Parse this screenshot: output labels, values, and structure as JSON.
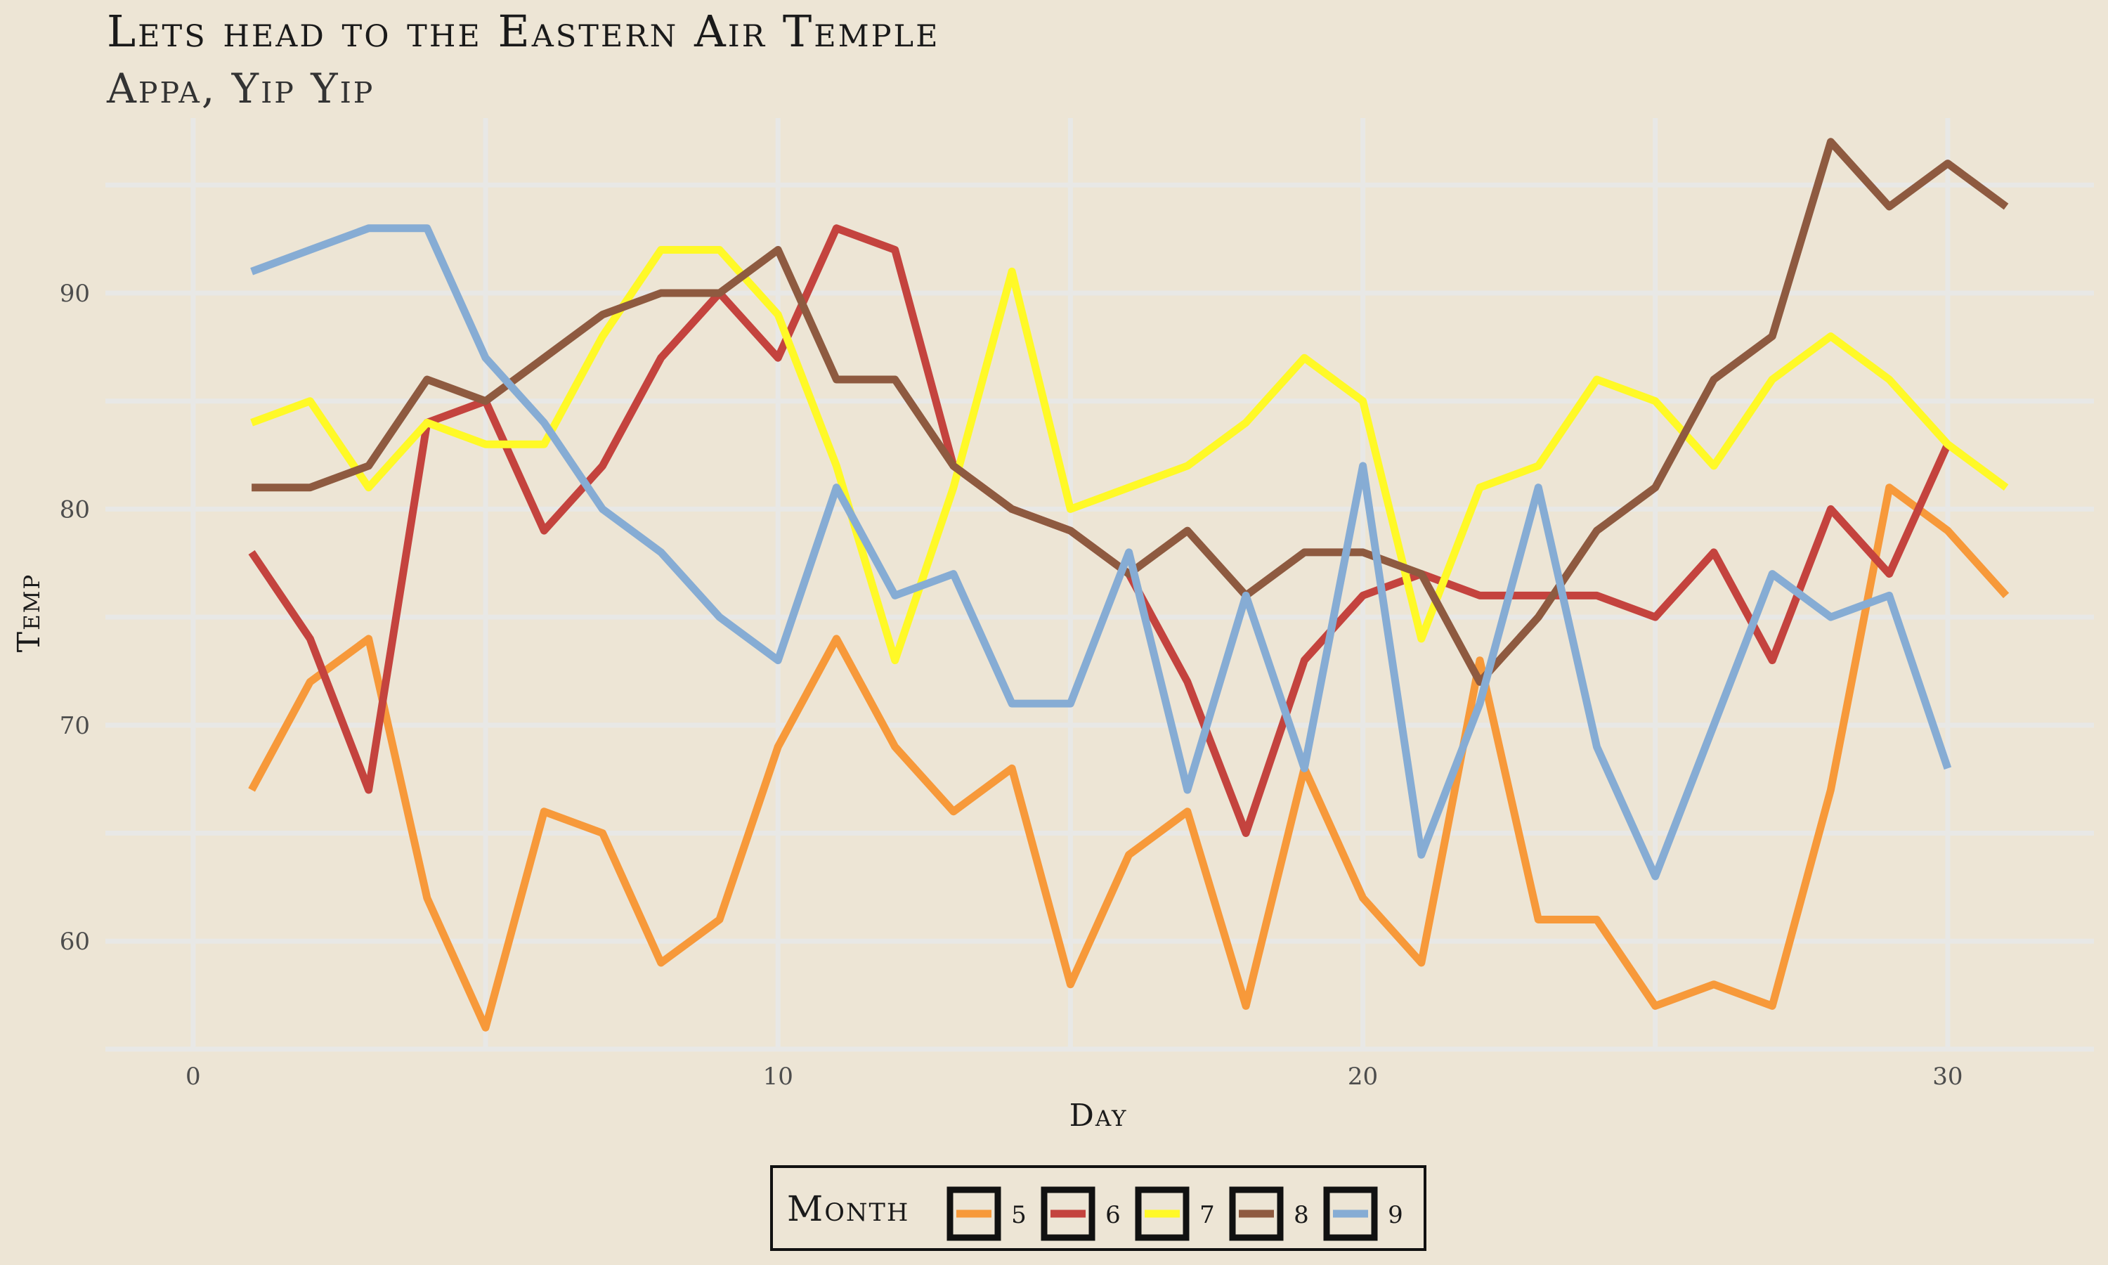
{
  "chart_data": {
    "type": "line",
    "title": "Lets head to the Eastern Air Temple",
    "subtitle": "Appa, Yip Yip",
    "xlabel": "Day",
    "ylabel": "Temp",
    "xlim": [
      -1.5,
      32.5
    ],
    "ylim": [
      54.9,
      98.1
    ],
    "x_ticks": [
      0,
      10,
      20,
      30
    ],
    "y_ticks": [
      60,
      70,
      80,
      90
    ],
    "grid": true,
    "legend": {
      "title": "Month",
      "position": "bottom"
    },
    "series": [
      {
        "name": "5",
        "color": "#f7993a",
        "x": [
          1,
          2,
          3,
          4,
          5,
          6,
          7,
          8,
          9,
          10,
          11,
          12,
          13,
          14,
          15,
          16,
          17,
          18,
          19,
          20,
          21,
          22,
          23,
          24,
          25,
          26,
          27,
          28,
          29,
          30,
          31
        ],
        "values": [
          67,
          72,
          74,
          62,
          56,
          66,
          65,
          59,
          61,
          69,
          74,
          69,
          66,
          68,
          58,
          64,
          66,
          57,
          68,
          62,
          59,
          73,
          61,
          61,
          57,
          58,
          57,
          67,
          81,
          79,
          76
        ]
      },
      {
        "name": "6",
        "color": "#c4433e",
        "x": [
          1,
          2,
          3,
          4,
          5,
          6,
          7,
          8,
          9,
          10,
          11,
          12,
          13,
          14,
          15,
          16,
          17,
          18,
          19,
          20,
          21,
          22,
          23,
          24,
          25,
          26,
          27,
          28,
          29,
          30
        ],
        "values": [
          78,
          74,
          67,
          84,
          85,
          79,
          82,
          87,
          90,
          87,
          93,
          92,
          82,
          80,
          79,
          77,
          72,
          65,
          73,
          76,
          77,
          76,
          76,
          76,
          75,
          78,
          73,
          80,
          77,
          83
        ]
      },
      {
        "name": "7",
        "color": "#fff927",
        "x": [
          1,
          2,
          3,
          4,
          5,
          6,
          7,
          8,
          9,
          10,
          11,
          12,
          13,
          14,
          15,
          16,
          17,
          18,
          19,
          20,
          21,
          22,
          23,
          24,
          25,
          26,
          27,
          28,
          29,
          30,
          31
        ],
        "values": [
          84,
          85,
          81,
          84,
          83,
          83,
          88,
          92,
          92,
          89,
          82,
          73,
          81,
          91,
          80,
          81,
          82,
          84,
          87,
          85,
          74,
          81,
          82,
          86,
          85,
          82,
          86,
          88,
          86,
          83,
          81
        ]
      },
      {
        "name": "8",
        "color": "#8e5a40",
        "x": [
          1,
          2,
          3,
          4,
          5,
          6,
          7,
          8,
          9,
          10,
          11,
          12,
          13,
          14,
          15,
          16,
          17,
          18,
          19,
          20,
          21,
          22,
          23,
          24,
          25,
          26,
          27,
          28,
          29,
          30,
          31
        ],
        "values": [
          81,
          81,
          82,
          86,
          85,
          87,
          89,
          90,
          90,
          92,
          86,
          86,
          82,
          80,
          79,
          77,
          79,
          76,
          78,
          78,
          77,
          72,
          75,
          79,
          81,
          86,
          88,
          97,
          94,
          96,
          94
        ]
      },
      {
        "name": "9",
        "color": "#86acd4",
        "x": [
          1,
          2,
          3,
          4,
          5,
          6,
          7,
          8,
          9,
          10,
          11,
          12,
          13,
          14,
          15,
          16,
          17,
          18,
          19,
          20,
          21,
          22,
          23,
          24,
          25,
          26,
          27,
          28,
          29,
          30
        ],
        "values": [
          91,
          92,
          93,
          93,
          87,
          84,
          80,
          78,
          75,
          73,
          81,
          76,
          77,
          71,
          71,
          78,
          67,
          76,
          68,
          82,
          64,
          71,
          81,
          69,
          63,
          70,
          77,
          75,
          76,
          68
        ]
      }
    ]
  }
}
